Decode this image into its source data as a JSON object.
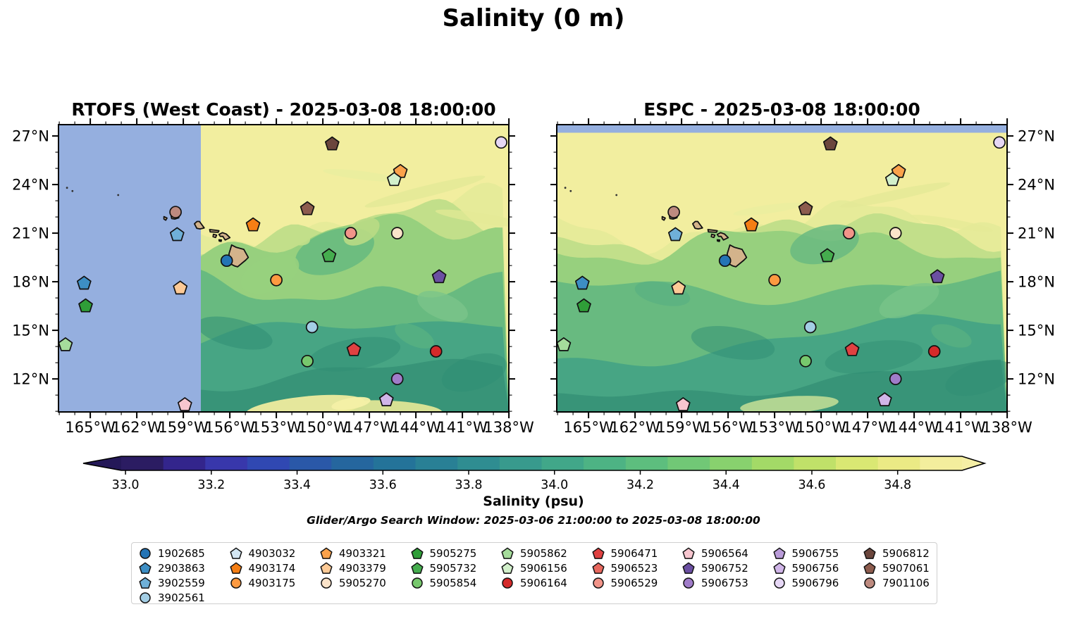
{
  "figure": {
    "title": "Salinity (0 m)",
    "search_window": "Glider/Argo Search Window: 2025-03-06 21:00:00 to 2025-03-08 18:00:00"
  },
  "chart_data": {
    "type": "heatmap",
    "title": "Salinity (0 m)",
    "variable": "Salinity",
    "units": "psu",
    "depth": "0 m",
    "subplots": [
      {
        "title": "RTOFS (West Coast) - 2025-03-08 18:00:00",
        "model": "RTOFS (West Coast)",
        "valid_time": "2025-03-08 18:00:00",
        "no_data_region": "west of 158W"
      },
      {
        "title": "ESPC - 2025-03-08 18:00:00",
        "model": "ESPC",
        "valid_time": "2025-03-08 18:00:00",
        "no_data_region": "north of 27.2N"
      }
    ],
    "extent": {
      "lon": [
        -167.05,
        -138.0
      ],
      "lat": [
        9.95,
        27.7
      ]
    },
    "lon_axis": {
      "tick_labels": [
        "165°W",
        "162°W",
        "159°W",
        "156°W",
        "153°W",
        "150°W",
        "147°W",
        "144°W",
        "141°W",
        "138°W"
      ],
      "tick_values": [
        -165,
        -162,
        -159,
        -156,
        -153,
        -150,
        -147,
        -144,
        -141,
        -138
      ]
    },
    "lat_axis": {
      "tick_labels": [
        "27°N",
        "24°N",
        "21°N",
        "18°N",
        "15°N",
        "12°N"
      ],
      "tick_values": [
        27,
        24,
        21,
        18,
        15,
        12
      ]
    },
    "colorbar": {
      "label": "Salinity (psu)",
      "tick_labels": [
        "33.0",
        "33.2",
        "33.4",
        "33.6",
        "33.8",
        "34.0",
        "34.2",
        "34.4",
        "34.6",
        "34.8"
      ],
      "tick_values": [
        33.0,
        33.2,
        33.4,
        33.6,
        33.8,
        34.0,
        34.2,
        34.4,
        34.6,
        34.8
      ],
      "vmin": 32.99,
      "vmax": 34.95,
      "extend": "both",
      "under_color": "#241858",
      "over_color": "#f5efa5",
      "segment_colors": [
        "#2b1c62",
        "#33258c",
        "#3837ab",
        "#3048b2",
        "#2a58a8",
        "#25669e",
        "#247399",
        "#298095",
        "#2f8d91",
        "#389a8d",
        "#41a789",
        "#4db384",
        "#5dbe7e",
        "#71c876",
        "#88d16e",
        "#a3da67",
        "#c0e169",
        "#dae873",
        "#ebea85",
        "#f3ee9d"
      ]
    },
    "no_data_color": "#95afdf",
    "land_color": "#d3b38b",
    "floats": [
      {
        "id": "1902685",
        "marker": "circle",
        "color": "#2474b5",
        "lon": -156.2,
        "lat": 19.3,
        "on_map": true
      },
      {
        "id": "2903863",
        "marker": "pentagon",
        "color": "#3d8ec4",
        "lon": -165.4,
        "lat": 17.9,
        "on_map": true
      },
      {
        "id": "3902559",
        "marker": "pentagon",
        "color": "#6fb0d8",
        "lon": -159.4,
        "lat": 20.9,
        "on_map": true
      },
      {
        "id": "3902561",
        "marker": "circle",
        "color": "#a3cee5",
        "lon": -150.7,
        "lat": 15.2,
        "on_map": true
      },
      {
        "id": "4903032",
        "marker": "pentagon",
        "color": "#d3e6f3",
        "lon": null,
        "lat": null,
        "on_map": false
      },
      {
        "id": "4903174",
        "marker": "pentagon",
        "color": "#f57e14",
        "lon": -154.5,
        "lat": 21.5,
        "on_map": true
      },
      {
        "id": "4903175",
        "marker": "circle",
        "color": "#fd9a41",
        "lon": -153.0,
        "lat": 18.1,
        "on_map": true
      },
      {
        "id": "4903321",
        "marker": "pentagon",
        "color": "#fba24b",
        "lon": -145.0,
        "lat": 24.8,
        "on_map": true
      },
      {
        "id": "4903379",
        "marker": "pentagon",
        "color": "#fdca96",
        "lon": -159.2,
        "lat": 17.6,
        "on_map": true
      },
      {
        "id": "5905270",
        "marker": "circle",
        "color": "#fbe3c9",
        "lon": -145.2,
        "lat": 21.0,
        "on_map": true
      },
      {
        "id": "5905275",
        "marker": "pentagon",
        "color": "#2f9e38",
        "lon": -165.3,
        "lat": 16.5,
        "on_map": true
      },
      {
        "id": "5905732",
        "marker": "pentagon",
        "color": "#45ad4e",
        "lon": -149.6,
        "lat": 19.6,
        "on_map": true
      },
      {
        "id": "5905854",
        "marker": "circle",
        "color": "#77c86d",
        "lon": -151.0,
        "lat": 13.1,
        "on_map": true
      },
      {
        "id": "5905862",
        "marker": "pentagon",
        "color": "#a5dc9b",
        "lon": -166.6,
        "lat": 14.1,
        "on_map": true
      },
      {
        "id": "5906156",
        "marker": "pentagon",
        "color": "#d2f0cb",
        "lon": -145.4,
        "lat": 24.3,
        "on_map": true
      },
      {
        "id": "5906164",
        "marker": "circle",
        "color": "#d42a2a",
        "lon": -142.7,
        "lat": 13.7,
        "on_map": true
      },
      {
        "id": "5906471",
        "marker": "pentagon",
        "color": "#e04141",
        "lon": -148.0,
        "lat": 13.8,
        "on_map": true
      },
      {
        "id": "5906523",
        "marker": "pentagon",
        "color": "#e8685e",
        "lon": null,
        "lat": null,
        "on_map": false
      },
      {
        "id": "5906529",
        "marker": "circle",
        "color": "#f29489",
        "lon": -148.2,
        "lat": 21.0,
        "on_map": true
      },
      {
        "id": "5906564",
        "marker": "pentagon",
        "color": "#f7c6cf",
        "lon": -158.9,
        "lat": 10.4,
        "on_map": true
      },
      {
        "id": "5906752",
        "marker": "pentagon",
        "color": "#6b4fa2",
        "lon": -142.5,
        "lat": 18.3,
        "on_map": true
      },
      {
        "id": "5906753",
        "marker": "circle",
        "color": "#a07cc9",
        "lon": -145.2,
        "lat": 12.0,
        "on_map": true
      },
      {
        "id": "5906755",
        "marker": "pentagon",
        "color": "#b99bd8",
        "lon": null,
        "lat": null,
        "on_map": false
      },
      {
        "id": "5906756",
        "marker": "pentagon",
        "color": "#d0b5e8",
        "lon": -145.9,
        "lat": 10.7,
        "on_map": true
      },
      {
        "id": "5906796",
        "marker": "circle",
        "color": "#e6d7f5",
        "lon": -138.5,
        "lat": 26.6,
        "on_map": true
      },
      {
        "id": "5906812",
        "marker": "pentagon",
        "color": "#6b463d",
        "lon": -149.4,
        "lat": 26.5,
        "on_map": true
      },
      {
        "id": "5907061",
        "marker": "pentagon",
        "color": "#8d5c4e",
        "lon": -151.0,
        "lat": 22.5,
        "on_map": true
      },
      {
        "id": "7901106",
        "marker": "circle",
        "color": "#bd8a7f",
        "lon": -159.5,
        "lat": 22.3,
        "on_map": true
      }
    ],
    "legend_columns": [
      4,
      3,
      3,
      3,
      3,
      3,
      3,
      3,
      3
    ]
  }
}
